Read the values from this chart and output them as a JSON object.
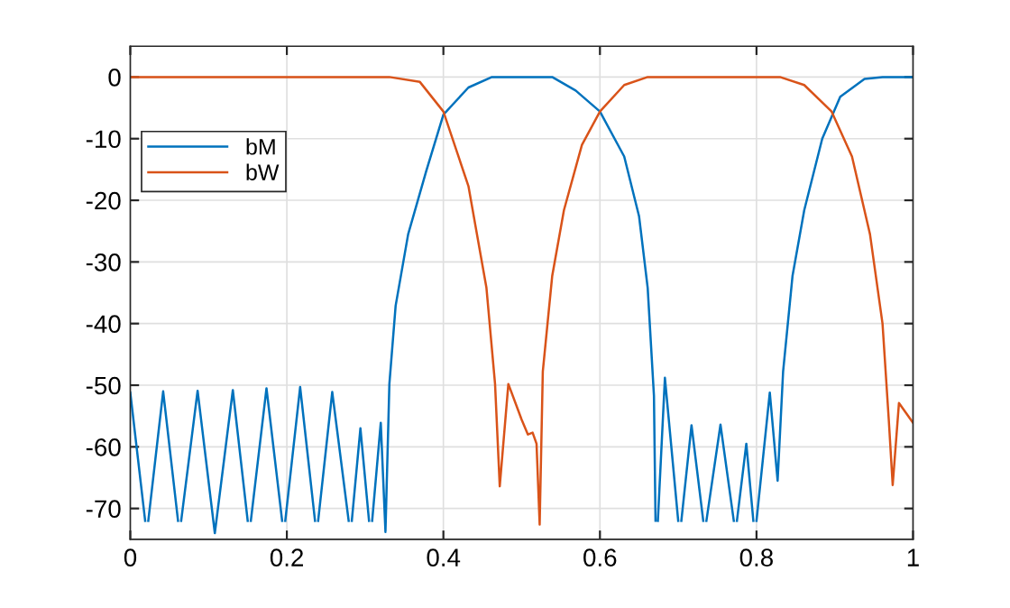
{
  "chart_data": {
    "type": "line",
    "xlim": [
      0,
      1
    ],
    "ylim": [
      -75,
      5
    ],
    "xticks": [
      0,
      {
        "value": 0.2,
        "label": "0.2"
      },
      {
        "value": 0.4,
        "label": "0.4"
      },
      {
        "value": 0.6,
        "label": "0.6"
      },
      {
        "value": 0.8,
        "label": "0.8"
      },
      1
    ],
    "yticks": [
      -70,
      -60,
      -50,
      -40,
      -30,
      -20,
      -10,
      0
    ],
    "grid": true,
    "legend": "top left",
    "marker": "none",
    "line_style": "solid",
    "series": [
      {
        "name": "bM",
        "color": "#0072bd",
        "x": [
          0,
          0.019,
          0.021,
          0.023,
          0.042,
          0.061,
          0.063,
          0.065,
          0.086,
          0.108,
          0.131,
          0.15,
          0.152,
          0.154,
          0.174,
          0.194,
          0.196,
          0.198,
          0.217,
          0.236,
          0.238,
          0.24,
          0.258,
          0.279,
          0.281,
          0.283,
          0.294,
          0.305,
          0.307,
          0.309,
          0.32,
          0.326,
          0.331,
          0.339,
          0.355,
          0.378,
          0.4,
          0.432,
          0.462,
          0.539,
          0.569,
          0.6,
          0.631,
          0.65,
          0.661,
          0.669,
          0.671,
          0.672,
          0.674,
          0.683,
          0.7,
          0.702,
          0.704,
          0.717,
          0.732,
          0.734,
          0.736,
          0.754,
          0.771,
          0.773,
          0.775,
          0.787,
          0.796,
          0.798,
          0.8,
          0.817,
          0.827,
          0.834,
          0.846,
          0.861,
          0.884,
          0.907,
          0.938,
          0.961,
          1
        ],
        "values": [
          -51.2,
          -72,
          null,
          -72,
          -51,
          -72,
          null,
          -72,
          -50.9,
          -74,
          -50.8,
          -72,
          null,
          -72,
          -50.5,
          -72,
          null,
          -72,
          -50.3,
          -72,
          null,
          -72,
          -51.1,
          -72,
          null,
          -72,
          -57,
          -72,
          null,
          -72,
          -56.1,
          -73.8,
          -49.8,
          -37.1,
          -25.5,
          -15.3,
          -6.1,
          -1.7,
          0,
          0,
          -2.2,
          -5.6,
          -12.9,
          -22.6,
          -34.2,
          -51.7,
          -72,
          null,
          -72,
          -48.8,
          -72,
          null,
          -72,
          -56.5,
          -72,
          null,
          -72,
          -56.4,
          -72,
          null,
          -72,
          -59.5,
          -72,
          null,
          -72,
          -51.2,
          -65.5,
          -47.8,
          -32.3,
          -21.6,
          -10,
          -3.2,
          -0.3,
          0,
          0
        ]
      },
      {
        "name": "bW",
        "color": "#d95319",
        "x": [
          0,
          0.331,
          0.37,
          0.4,
          0.432,
          0.455,
          0.466,
          0.472,
          0.483,
          0.5,
          0.508,
          0.514,
          0.519,
          0.523,
          0.527,
          0.539,
          0.554,
          0.577,
          0.6,
          0.631,
          0.661,
          0.83,
          0.861,
          0.896,
          0.922,
          0.945,
          0.961,
          0.969,
          0.974,
          0.982,
          1
        ],
        "values": [
          0,
          0,
          -0.8,
          -5.6,
          -17.7,
          -34.2,
          -49.8,
          -66.4,
          -49.8,
          -55.6,
          -58,
          -57.7,
          -59.5,
          -72.6,
          -47.8,
          -32.3,
          -21.6,
          -11,
          -5.6,
          -1.3,
          0,
          0,
          -1.3,
          -5.6,
          -12.9,
          -25.5,
          -40,
          -55.6,
          -66.2,
          -52.9,
          -56.1
        ]
      }
    ]
  }
}
